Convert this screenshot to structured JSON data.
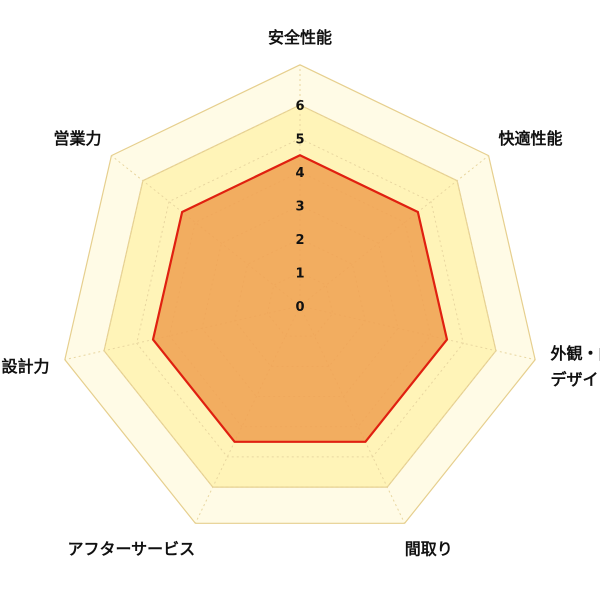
{
  "chart_data": {
    "type": "radar",
    "title": "",
    "axes": [
      {
        "label_lines": [
          "安全性能"
        ],
        "value": 4.5
      },
      {
        "label_lines": [
          "快適性能"
        ],
        "value": 4.5
      },
      {
        "label_lines": [
          "外観・内観",
          "デザイン"
        ],
        "value": 4.5
      },
      {
        "label_lines": [
          "間取り"
        ],
        "value": 4.5
      },
      {
        "label_lines": [
          "アフターサービス"
        ],
        "value": 4.5
      },
      {
        "label_lines": [
          "設計力"
        ],
        "value": 4.5
      },
      {
        "label_lines": [
          "営業力"
        ],
        "value": 4.5
      }
    ],
    "ticks": [
      0,
      1,
      2,
      3,
      4,
      5,
      6
    ],
    "r_range": [
      0,
      6
    ],
    "grid": true,
    "colors": {
      "series_fill": "#f0a050",
      "series_stroke": "#e02010",
      "outer_band": "#fffbe6",
      "inner_band": "#fff4b8",
      "grid_line": "#e8d6a0",
      "grid_outline": "#e6cf8e"
    }
  }
}
